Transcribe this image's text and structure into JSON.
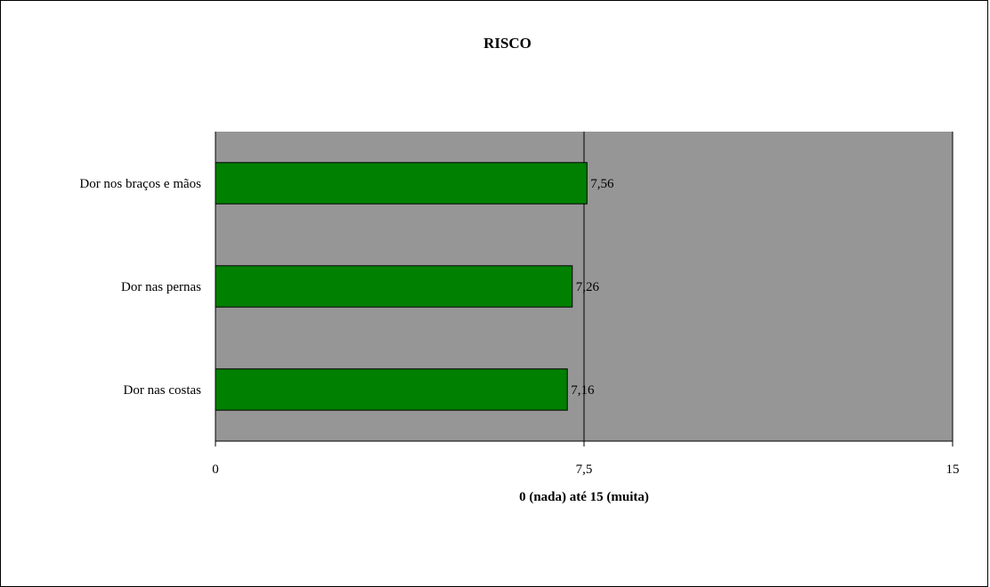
{
  "chart_data": {
    "type": "bar",
    "orientation": "horizontal",
    "title": "RISCO",
    "xlabel": "0 (nada) até 15 (muita)",
    "ylabel": "",
    "categories": [
      "Dor nos braços e mãos",
      "Dor nas pernas",
      "Dor nas costas"
    ],
    "values": [
      7.56,
      7.26,
      7.16
    ],
    "data_labels": [
      "7,56",
      "7,26",
      "7,16"
    ],
    "xlim": [
      0,
      15
    ],
    "ticks": [
      0,
      7.5,
      15
    ],
    "tick_labels": [
      "0",
      "7,5",
      "15"
    ],
    "grid": true,
    "legend": false,
    "colors": {
      "bar": "#008000",
      "plot_area": "#969696",
      "bar_border": "#000000",
      "gridline": "#000000"
    }
  }
}
